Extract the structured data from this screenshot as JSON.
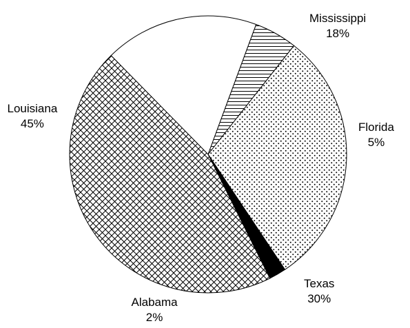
{
  "chart_data": {
    "type": "pie",
    "title": "",
    "start_angle_deg": -44.5,
    "direction": "clockwise",
    "slices": [
      {
        "name": "Mississippi",
        "value": 18,
        "label": "18%",
        "pattern": "blank"
      },
      {
        "name": "Florida",
        "value": 5,
        "label": "5%",
        "pattern": "horizontal-lines"
      },
      {
        "name": "Texas",
        "value": 30,
        "label": "30%",
        "pattern": "dots"
      },
      {
        "name": "Alabama",
        "value": 2,
        "label": "2%",
        "pattern": "solid-black"
      },
      {
        "name": "Louisiana",
        "value": 45,
        "label": "45%",
        "pattern": "crosshatch"
      }
    ]
  }
}
